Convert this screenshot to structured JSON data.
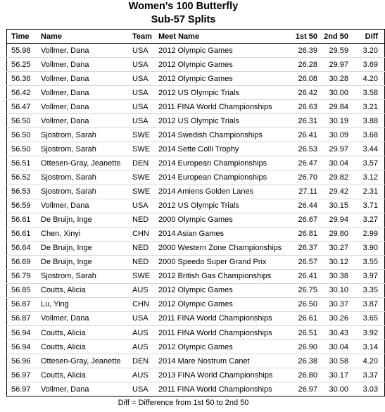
{
  "title": "Women's 100 Butterfly",
  "subtitle": "Sub-57 Splits",
  "headers": {
    "time": "Time",
    "name": "Name",
    "team": "Team",
    "meet": "Meet Name",
    "split1": "1st 50",
    "split2": "2nd 50",
    "diff": "Diff"
  },
  "rows": [
    [
      "55.98",
      "Vollmer, Dana",
      "USA",
      "2012 Olympic Games",
      "26.39",
      "29.59",
      "3.20"
    ],
    [
      "56.25",
      "Vollmer, Dana",
      "USA",
      "2012 Olympic Games",
      "26.28",
      "29.97",
      "3.69"
    ],
    [
      "56.36",
      "Vollmer, Dana",
      "USA",
      "2012 Olympic Games",
      "26.08",
      "30.28",
      "4.20"
    ],
    [
      "56.42",
      "Vollmer, Dana",
      "USA",
      "2012 US Olympic Trials",
      "26.42",
      "30.00",
      "3.58"
    ],
    [
      "56.47",
      "Vollmer, Dana",
      "USA",
      "2011 FINA World Championships",
      "26.63",
      "29.84",
      "3.21"
    ],
    [
      "56.50",
      "Vollmer, Dana",
      "USA",
      "2012 US Olympic Trials",
      "26.31",
      "30.19",
      "3.88"
    ],
    [
      "56.50",
      "Sjostrom, Sarah",
      "SWE",
      "2014 Swedish Championships",
      "26.41",
      "30.09",
      "3.68"
    ],
    [
      "56.50",
      "Sjostrom, Sarah",
      "SWE",
      "2014 Sette Colli Trophy",
      "26.53",
      "29.97",
      "3.44"
    ],
    [
      "56.51",
      "Ottesen-Gray, Jeanette",
      "DEN",
      "2014 European Championships",
      "26.47",
      "30.04",
      "3.57"
    ],
    [
      "56.52",
      "Sjostrom, Sarah",
      "SWE",
      "2014 European Championships",
      "26.70",
      "29.82",
      "3.12"
    ],
    [
      "56.53",
      "Sjostrom, Sarah",
      "SWE",
      "2014 Amiens Golden Lanes",
      "27.11",
      "29.42",
      "2.31"
    ],
    [
      "56.59",
      "Vollmer, Dana",
      "USA",
      "2012 US Olympic Trials",
      "26.44",
      "30.15",
      "3.71"
    ],
    [
      "56.61",
      "De Bruijn, Inge",
      "NED",
      "2000 Olympic Games",
      "26.67",
      "29.94",
      "3.27"
    ],
    [
      "56.61",
      "Chen, Xinyi",
      "CHN",
      "2014 Asian Games",
      "26.81",
      "29.80",
      "2.99"
    ],
    [
      "56.64",
      "De Bruijn, Inge",
      "NED",
      "2000 Western Zone Championships",
      "26.37",
      "30.27",
      "3.90"
    ],
    [
      "56.69",
      "De Bruijn, Inge",
      "NED",
      "2000 Speedo Super Grand Prix",
      "26.57",
      "30.12",
      "3.55"
    ],
    [
      "56.79",
      "Sjostrom, Sarah",
      "SWE",
      "2012 British Gas Championships",
      "26.41",
      "30.38",
      "3.97"
    ],
    [
      "56.85",
      "Coutts, Alicia",
      "AUS",
      "2012 Olympic Games",
      "26.75",
      "30.10",
      "3.35"
    ],
    [
      "56.87",
      "Lu, Ying",
      "CHN",
      "2012 Olympic Games",
      "26.50",
      "30.37",
      "3.87"
    ],
    [
      "56.87",
      "Vollmer, Dana",
      "USA",
      "2011 FINA World Championships",
      "26.61",
      "30.26",
      "3.65"
    ],
    [
      "56.94",
      "Coutts, Alicia",
      "AUS",
      "2011 FINA World Championships",
      "26.51",
      "30.43",
      "3.92"
    ],
    [
      "56.94",
      "Coutts, Alicia",
      "AUS",
      "2012 Olympic Games",
      "26.90",
      "30.04",
      "3.14"
    ],
    [
      "56.96",
      "Ottesen-Gray, Jeanette",
      "DEN",
      "2014 Mare Nostrum Canet",
      "26.38",
      "30.58",
      "4.20"
    ],
    [
      "56.97",
      "Coutts, Alicia",
      "AUS",
      "2013 FINA World Championships",
      "26.80",
      "30.17",
      "3.37"
    ],
    [
      "56.97",
      "Vollmer, Dana",
      "USA",
      "2011 FINA World Championships",
      "26.97",
      "30.00",
      "3.03"
    ]
  ],
  "footnote": "Diff = Difference from 1st 50 to 2nd 50"
}
